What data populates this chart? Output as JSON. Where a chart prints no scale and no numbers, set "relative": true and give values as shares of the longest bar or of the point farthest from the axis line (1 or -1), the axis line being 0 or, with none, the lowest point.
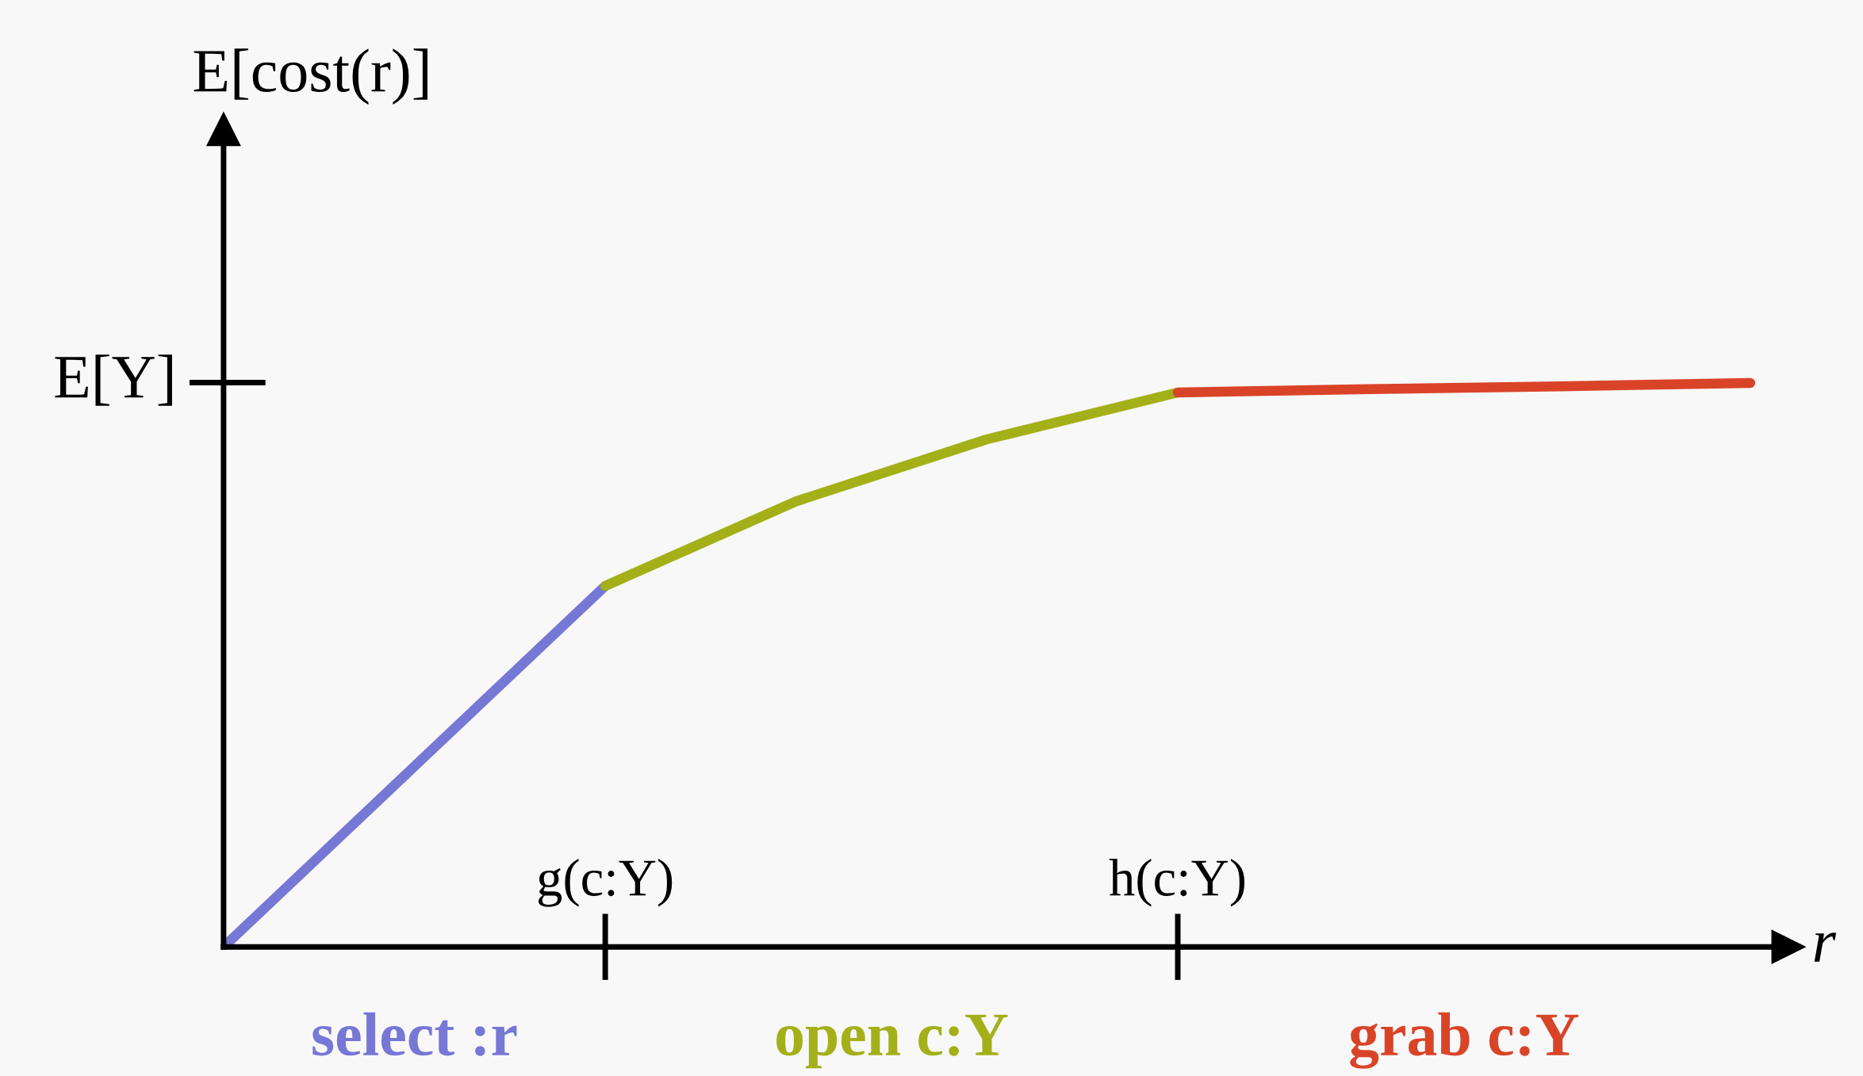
{
  "chart_data": {
    "type": "line",
    "relative": true,
    "ylabel": "E[cost(r)]",
    "xlabel": "r",
    "categories": [
      null,
      null,
      "g(c:Y)",
      null,
      null,
      "h(c:Y)",
      null,
      null,
      null
    ],
    "series": [
      {
        "name": "select :r",
        "color": "#7777d6",
        "values": [
          0,
          0.32,
          0.64,
          null,
          null,
          null,
          null,
          null,
          null
        ]
      },
      {
        "name": "open c:Y",
        "color": "#a3b018",
        "values": [
          null,
          null,
          0.64,
          0.79,
          0.9,
          0.983,
          null,
          null,
          null
        ]
      },
      {
        "name": "grab c:Y",
        "color": "#d94428",
        "values": [
          null,
          null,
          null,
          null,
          null,
          0.983,
          0.989,
          0.994,
          1.0
        ]
      }
    ],
    "annotations": [
      "E[Y]"
    ],
    "grid": false,
    "legend": false,
    "line_style": "solid"
  }
}
